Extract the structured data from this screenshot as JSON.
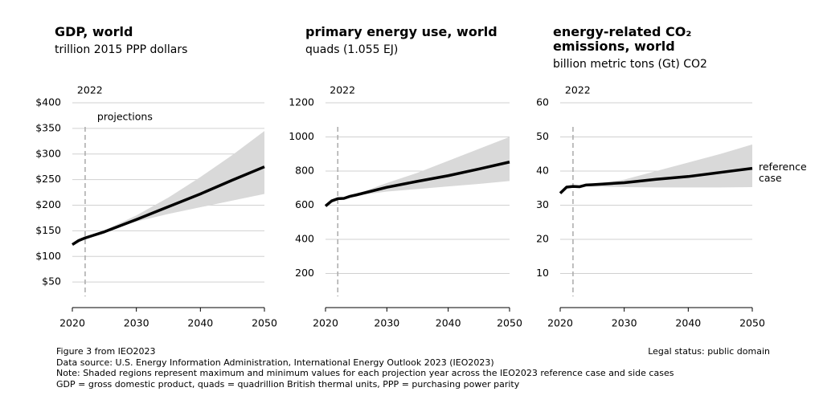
{
  "chart_data": [
    {
      "type": "line",
      "title": "GDP, world",
      "subtitle": "trillion 2015 PPP dollars",
      "x": [
        2020,
        2021,
        2022,
        2023,
        2025,
        2030,
        2035,
        2040,
        2045,
        2050
      ],
      "series": [
        {
          "color": "#000000",
          "values": [
            123,
            131,
            136,
            140,
            148,
            172,
            197,
            222,
            249,
            275
          ]
        }
      ],
      "band": {
        "color": "#d9d9d9",
        "x": [
          2024,
          2030,
          2035,
          2040,
          2045,
          2050
        ],
        "upper": [
          145,
          180,
          215,
          255,
          298,
          345
        ],
        "lower": [
          145,
          168,
          183,
          196,
          209,
          222
        ]
      },
      "marker": {
        "x": 2022
      },
      "annotation": "projections",
      "xlim": [
        2020,
        2050
      ],
      "xticks": [
        2020,
        2030,
        2040,
        2050
      ],
      "ylim": [
        0,
        400
      ],
      "yticks": [
        {
          "value": 50,
          "label": "$50"
        },
        {
          "value": 100,
          "label": "$100"
        },
        {
          "value": 150,
          "label": "$150"
        },
        {
          "value": 200,
          "label": "$200"
        },
        {
          "value": 250,
          "label": "$250"
        },
        {
          "value": 300,
          "label": "$300"
        },
        {
          "value": 350,
          "label": "$350"
        },
        {
          "value": 400,
          "label": "$400"
        }
      ],
      "grid": true
    },
    {
      "type": "line",
      "title": "primary energy use, world",
      "subtitle": "quads (1.055 EJ)",
      "x": [
        2020,
        2021,
        2022,
        2023,
        2024,
        2025,
        2030,
        2035,
        2040,
        2045,
        2050
      ],
      "series": [
        {
          "color": "#000000",
          "values": [
            595,
            625,
            638,
            640,
            652,
            660,
            705,
            740,
            773,
            812,
            853
          ]
        }
      ],
      "band": {
        "color": "#d9d9d9",
        "x": [
          2024,
          2030,
          2035,
          2040,
          2045,
          2050
        ],
        "upper": [
          652,
          730,
          790,
          860,
          930,
          1000
        ],
        "lower": [
          652,
          680,
          695,
          710,
          725,
          742
        ]
      },
      "marker": {
        "x": 2022
      },
      "xlim": [
        2020,
        2050
      ],
      "xticks": [
        2020,
        2030,
        2040,
        2050
      ],
      "ylim": [
        0,
        1200
      ],
      "yticks": [
        200,
        400,
        600,
        800,
        1000,
        1200
      ],
      "grid": true
    },
    {
      "type": "line",
      "title": "energy-related CO₂ emissions, world",
      "subtitle": "billion metric tons (Gt) CO2",
      "x": [
        2020,
        2021,
        2022,
        2023,
        2024,
        2025,
        2030,
        2035,
        2040,
        2045,
        2050
      ],
      "series": [
        {
          "name": "reference case",
          "color": "#000000",
          "values": [
            33.5,
            35.3,
            35.5,
            35.4,
            35.9,
            36.0,
            36.6,
            37.6,
            38.4,
            39.6,
            40.8
          ]
        }
      ],
      "band": {
        "color": "#d9d9d9",
        "x": [
          2024,
          2030,
          2035,
          2040,
          2045,
          2050
        ],
        "upper": [
          35.9,
          37.5,
          40,
          42.5,
          45,
          47.8
        ],
        "lower": [
          35.5,
          35.3,
          35.2,
          35.2,
          35.2,
          35.3
        ]
      },
      "marker": {
        "x": 2022
      },
      "xlim": [
        2020,
        2050
      ],
      "xticks": [
        2020,
        2030,
        2040,
        2050
      ],
      "ylim": [
        0,
        60
      ],
      "yticks": [
        10,
        20,
        30,
        40,
        50,
        60
      ],
      "grid": true
    }
  ],
  "footer": {
    "lines": [
      "Figure 3 from IEO2023",
      "Data source: U.S. Energy Information Administration, International Energy Outlook 2023 (IEO2023)",
      "Note: Shaded regions represent maximum and minimum values for each projection year across the IEO2023 reference case and side cases",
      "GDP = gross domestic product, quads = quadrillion British thermal units, PPP = purchasing power parity"
    ],
    "legal": "Legal status: public domain"
  }
}
